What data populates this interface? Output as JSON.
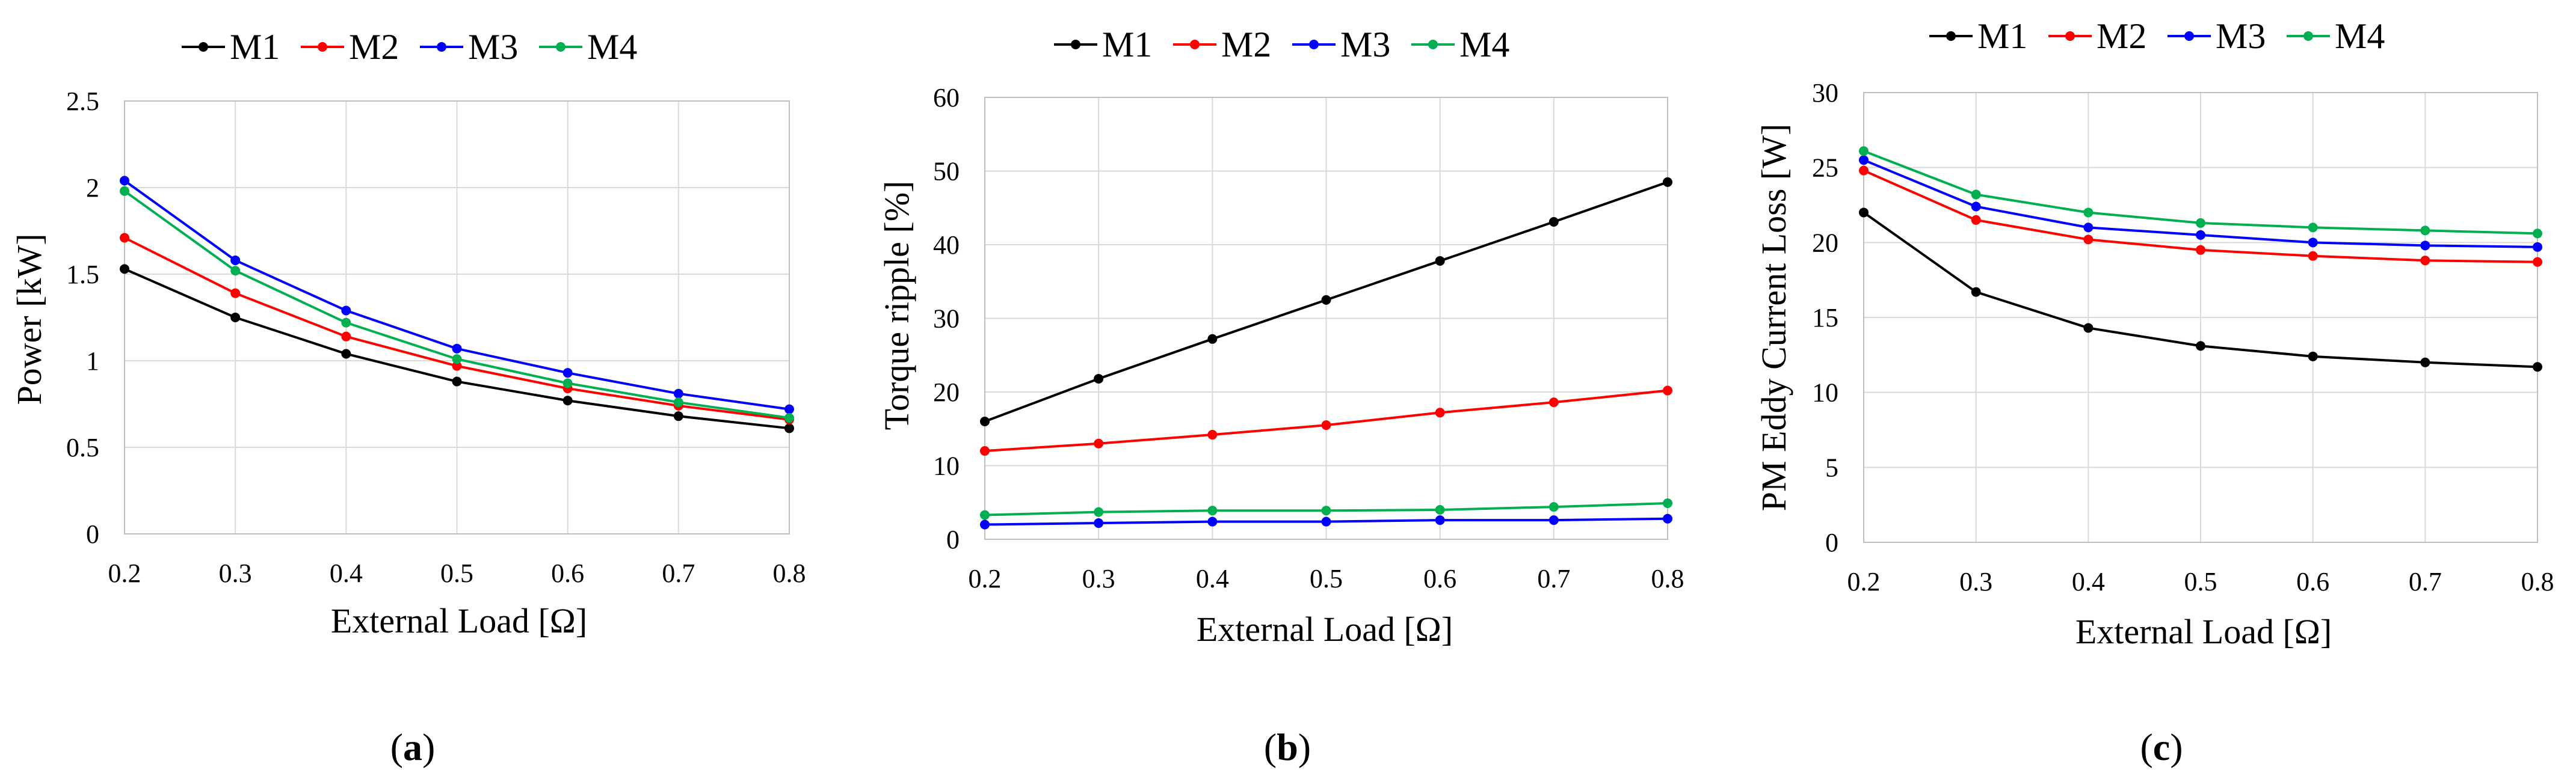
{
  "colors": {
    "M1": "#000000",
    "M2": "#ff0000",
    "M3": "#0000ff",
    "M4": "#00b050",
    "grid": "#d9d9d9",
    "axis": "#bfbfbf"
  },
  "chart_data": [
    {
      "type": "line",
      "caption": {
        "open": "(",
        "letter": "a",
        "close": ")"
      },
      "title": "",
      "xlabel": "External Load [Ω]",
      "ylabel": "Power [kW]",
      "x": [
        0.2,
        0.3,
        0.4,
        0.5,
        0.6,
        0.7,
        0.8
      ],
      "x_tick_labels": [
        "0.2",
        "0.3",
        "0.4",
        "0.5",
        "0.6",
        "0.7",
        "0.8"
      ],
      "xlim": [
        0.2,
        0.8
      ],
      "ylim": [
        0,
        2.5
      ],
      "y_ticks": [
        0,
        0.5,
        1,
        1.5,
        2,
        2.5
      ],
      "y_tick_labels": [
        "0",
        "0.5",
        "1",
        "1.5",
        "2",
        "2.5"
      ],
      "grid": true,
      "legend_position": "top",
      "series": [
        {
          "name": "M1",
          "values": [
            1.53,
            1.25,
            1.04,
            0.88,
            0.77,
            0.68,
            0.61
          ]
        },
        {
          "name": "M2",
          "values": [
            1.71,
            1.39,
            1.14,
            0.97,
            0.84,
            0.74,
            0.66
          ]
        },
        {
          "name": "M3",
          "values": [
            2.04,
            1.58,
            1.29,
            1.07,
            0.93,
            0.81,
            0.72
          ]
        },
        {
          "name": "M4",
          "values": [
            1.98,
            1.52,
            1.22,
            1.01,
            0.87,
            0.76,
            0.67
          ]
        }
      ]
    },
    {
      "type": "line",
      "caption": {
        "open": "(",
        "letter": "b",
        "close": ")"
      },
      "title": "",
      "xlabel": "External Load [Ω]",
      "ylabel": "Torque ripple [%]",
      "x": [
        0.2,
        0.3,
        0.4,
        0.5,
        0.6,
        0.7,
        0.8
      ],
      "x_tick_labels": [
        "0.2",
        "0.3",
        "0.4",
        "0.5",
        "0.6",
        "0.7",
        "0.8"
      ],
      "xlim": [
        0.2,
        0.8
      ],
      "ylim": [
        0,
        60
      ],
      "y_ticks": [
        0,
        10,
        20,
        30,
        40,
        50,
        60
      ],
      "y_tick_labels": [
        "0",
        "10",
        "20",
        "30",
        "40",
        "50",
        "60"
      ],
      "grid": true,
      "legend_position": "top",
      "series": [
        {
          "name": "M1",
          "values": [
            16.0,
            21.8,
            27.2,
            32.5,
            37.8,
            43.1,
            48.5
          ]
        },
        {
          "name": "M2",
          "values": [
            12.0,
            13.0,
            14.2,
            15.5,
            17.2,
            18.6,
            20.2
          ]
        },
        {
          "name": "M3",
          "values": [
            2.0,
            2.2,
            2.4,
            2.4,
            2.6,
            2.6,
            2.8
          ]
        },
        {
          "name": "M4",
          "values": [
            3.3,
            3.7,
            3.9,
            3.9,
            4.0,
            4.4,
            4.9
          ]
        }
      ]
    },
    {
      "type": "line",
      "caption": {
        "open": "(",
        "letter": "c",
        "close": ")"
      },
      "title": "",
      "xlabel": "External Load [Ω]",
      "ylabel": "PM Eddy Current Loss [W]",
      "x": [
        0.2,
        0.3,
        0.4,
        0.5,
        0.6,
        0.7,
        0.8
      ],
      "x_tick_labels": [
        "0.2",
        "0.3",
        "0.4",
        "0.5",
        "0.6",
        "0.7",
        "0.8"
      ],
      "xlim": [
        0.2,
        0.8
      ],
      "ylim": [
        0,
        30
      ],
      "y_ticks": [
        0,
        5,
        10,
        15,
        20,
        25,
        30
      ],
      "y_tick_labels": [
        "0",
        "5",
        "10",
        "15",
        "20",
        "25",
        "30"
      ],
      "grid": true,
      "legend_position": "top",
      "series": [
        {
          "name": "M1",
          "values": [
            22.0,
            16.7,
            14.3,
            13.1,
            12.4,
            12.0,
            11.7
          ]
        },
        {
          "name": "M2",
          "values": [
            24.8,
            21.5,
            20.2,
            19.5,
            19.1,
            18.8,
            18.7
          ]
        },
        {
          "name": "M3",
          "values": [
            25.5,
            22.4,
            21.0,
            20.5,
            20.0,
            19.8,
            19.7
          ]
        },
        {
          "name": "M4",
          "values": [
            26.1,
            23.2,
            22.0,
            21.3,
            21.0,
            20.8,
            20.6
          ]
        }
      ]
    }
  ]
}
